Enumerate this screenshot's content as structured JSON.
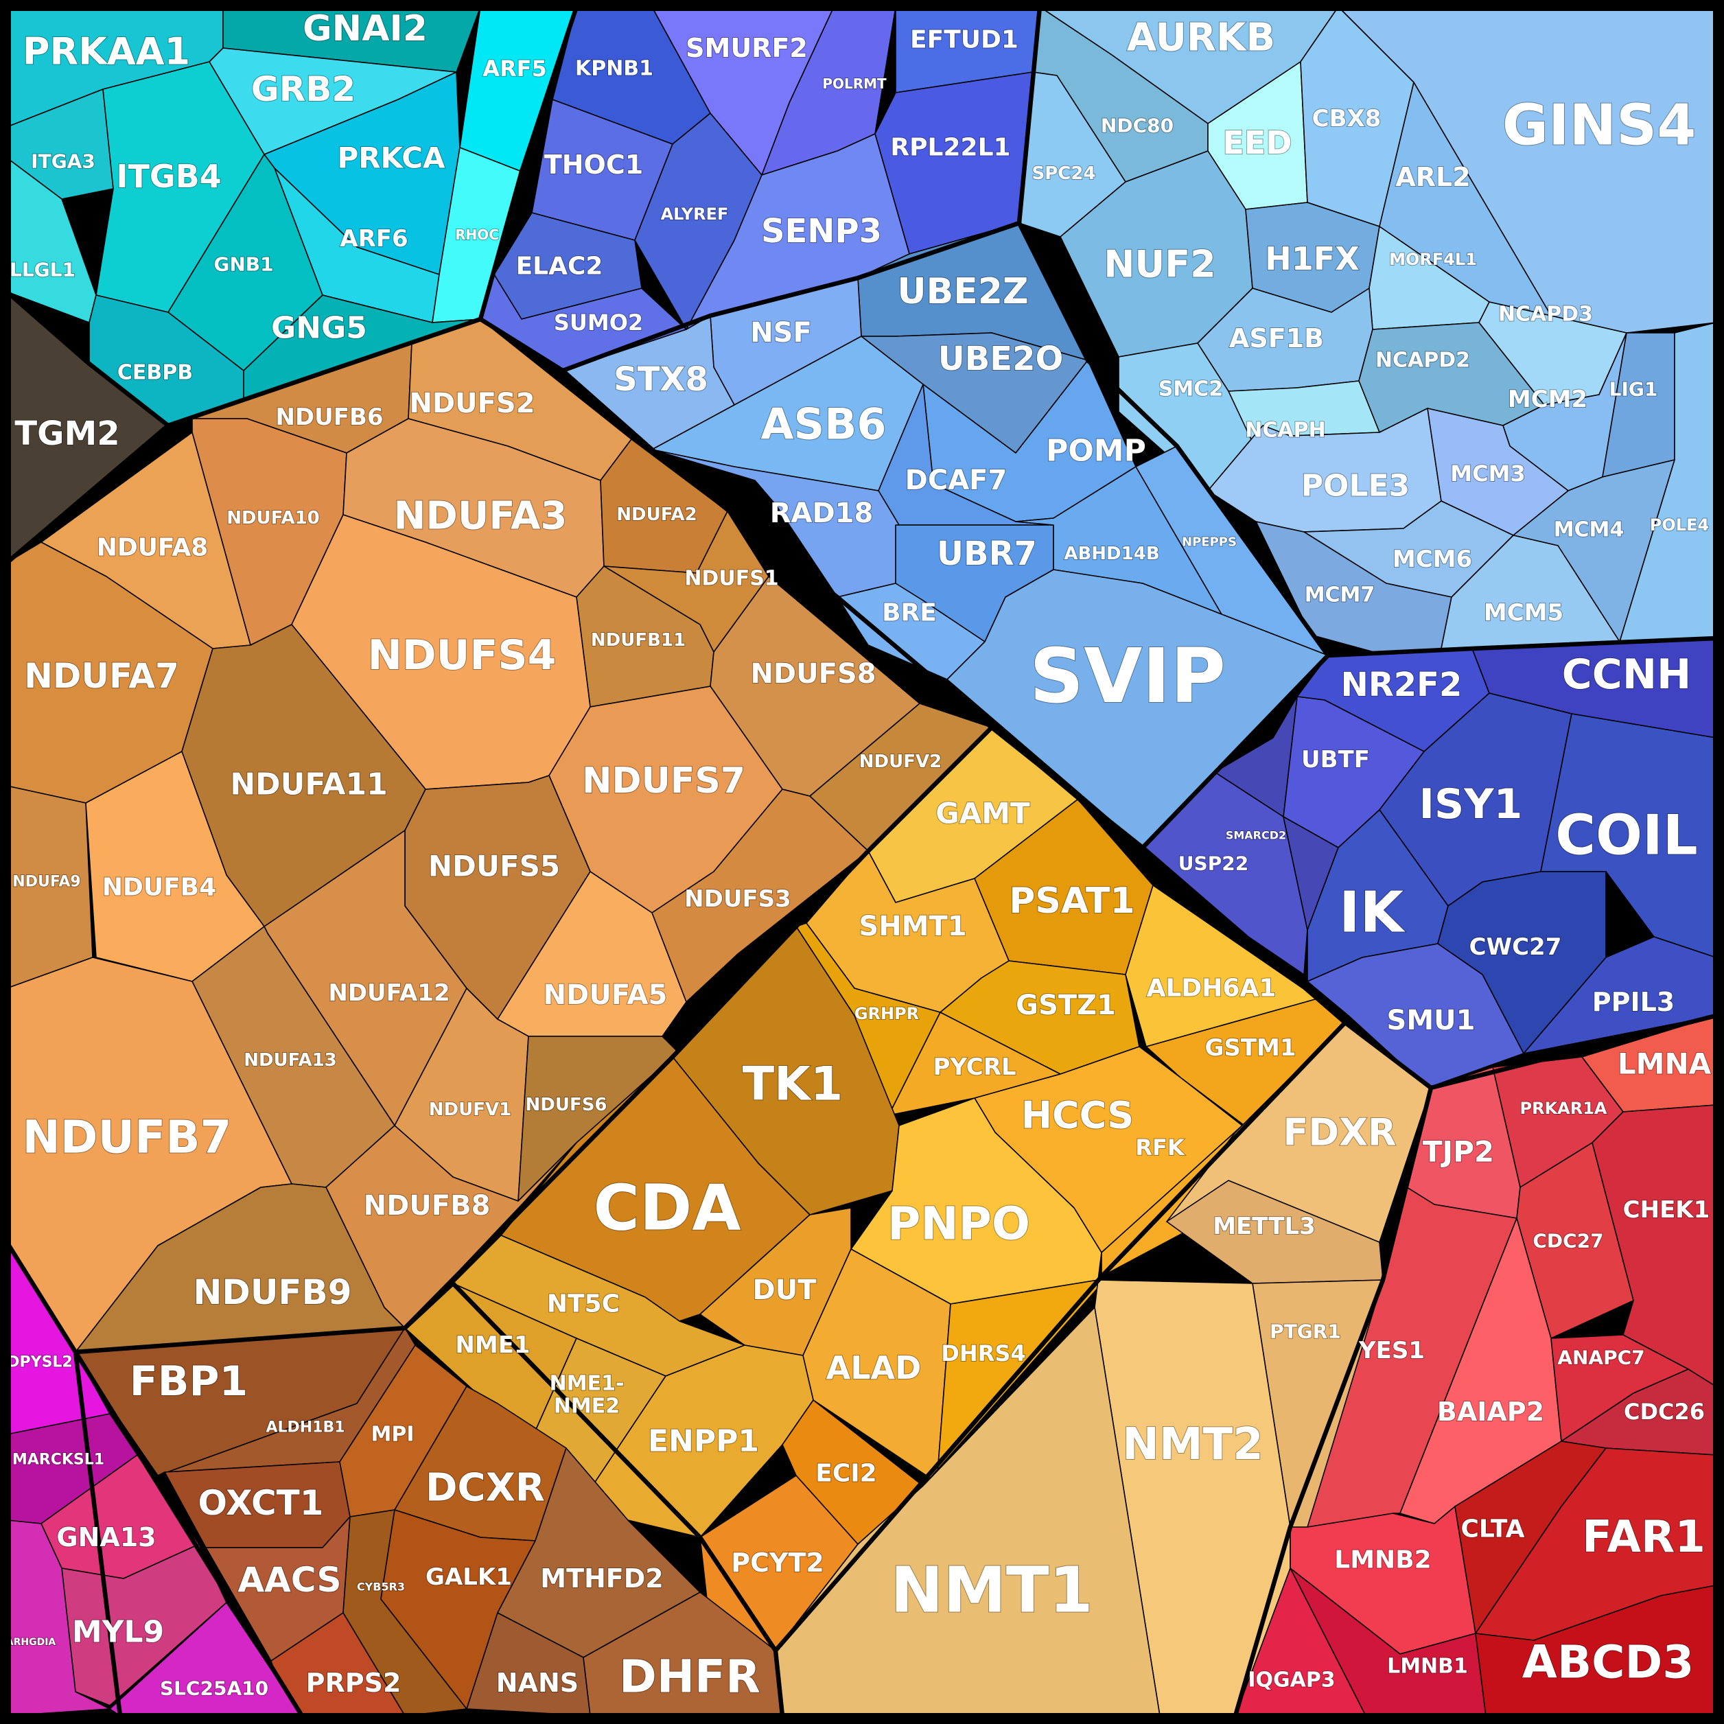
{
  "treemap": {
    "background": "#000000",
    "groups": [
      {
        "id": "cyan",
        "color": "#00c8d8",
        "cells": [
          {
            "label": "PRKAA1",
            "color": "#17c6d2"
          },
          {
            "label": "GNAI2",
            "color": "#05a8a8"
          },
          {
            "label": "ARF5",
            "color": "#00e8f5"
          },
          {
            "label": "GRB2",
            "color": "#3cdbee"
          },
          {
            "label": "ITGA3",
            "color": "#1cc4cf"
          },
          {
            "label": "ITGB4",
            "color": "#0dcfd2"
          },
          {
            "label": "PRKCA",
            "color": "#08c2e4"
          },
          {
            "label": "ARF6",
            "color": "#20d6e8"
          },
          {
            "label": "GNB1",
            "color": "#04bfc2"
          },
          {
            "label": "RHOC",
            "color": "#44fbfc"
          },
          {
            "label": "LLGL1",
            "color": "#36dbdf"
          },
          {
            "label": "GNG5",
            "color": "#04b1b4"
          },
          {
            "label": "CEBPB",
            "color": "#0cb5c1"
          }
        ]
      },
      {
        "id": "dark",
        "color": "#4b4034",
        "cells": [
          {
            "label": "TGM2",
            "color": "#4b4034"
          }
        ]
      },
      {
        "id": "indigo",
        "color": "#5060e8",
        "cells": [
          {
            "label": "KPNB1",
            "color": "#3a5ad6"
          },
          {
            "label": "SMURF2",
            "color": "#7a78fa"
          },
          {
            "label": "POLRMT",
            "color": "#6669ee"
          },
          {
            "label": "EFTUD1",
            "color": "#4b6ee6"
          },
          {
            "label": "THOC1",
            "color": "#5b6ee4"
          },
          {
            "label": "ALYREF",
            "color": "#4a66d8"
          },
          {
            "label": "RPL22L1",
            "color": "#4a5ae2"
          },
          {
            "label": "SENP3",
            "color": "#6f88f2"
          },
          {
            "label": "ELAC2",
            "color": "#4e6bd8"
          },
          {
            "label": "SUMO2",
            "color": "#6071e8"
          }
        ]
      },
      {
        "id": "lightblue",
        "color": "#90c8f0",
        "cells": [
          {
            "label": "AURKB",
            "color": "#8ac6ee"
          },
          {
            "label": "GINS4",
            "color": "#92c4f3"
          },
          {
            "label": "NDC80",
            "color": "#7ab9d9"
          },
          {
            "label": "EED",
            "color": "#b6fbfb"
          },
          {
            "label": "CBX8",
            "color": "#8fcaf7"
          },
          {
            "label": "SPC24",
            "color": "#8ccaf4"
          },
          {
            "label": "ARL2",
            "color": "#84bdf0"
          },
          {
            "label": "NUF2",
            "color": "#7bbbe4"
          },
          {
            "label": "H1FX",
            "color": "#73acde"
          },
          {
            "label": "MORF4L1",
            "color": "#9fdaf8"
          },
          {
            "label": "NCAPD3",
            "color": "#a2d8f8"
          },
          {
            "label": "ASF1B",
            "color": "#8ac4ee"
          },
          {
            "label": "SMC2",
            "color": "#8ecff3"
          },
          {
            "label": "NCAPD2",
            "color": "#78b4d8"
          },
          {
            "label": "NCAPH",
            "color": "#a4e6f7"
          },
          {
            "label": "MCM2",
            "color": "#88bdf3"
          },
          {
            "label": "LIG1",
            "color": "#6fa6e0"
          },
          {
            "label": "POLE3",
            "color": "#9fcaf8"
          },
          {
            "label": "MCM3",
            "color": "#97bcf7"
          },
          {
            "label": "MCM4",
            "color": "#7fb3e6"
          },
          {
            "label": "POLE4",
            "color": "#8cc7f4"
          },
          {
            "label": "MCM6",
            "color": "#92c3f0"
          },
          {
            "label": "MCM7",
            "color": "#7ba9e0"
          },
          {
            "label": "MCM5",
            "color": "#96caf3"
          }
        ]
      },
      {
        "id": "blue",
        "color": "#70a8e8",
        "cells": [
          {
            "label": "UBE2Z",
            "color": "#5590cc"
          },
          {
            "label": "NSF",
            "color": "#80aef4"
          },
          {
            "label": "UBE2O",
            "color": "#6497d0"
          },
          {
            "label": "STX8",
            "color": "#8ab8f0"
          },
          {
            "label": "ASB6",
            "color": "#7ab8f4"
          },
          {
            "label": "POMP",
            "color": "#65a6ee"
          },
          {
            "label": "DCAF7",
            "color": "#5f9aea"
          },
          {
            "label": "RAD18",
            "color": "#76a4f0"
          },
          {
            "label": "UBR7",
            "color": "#5a98e8"
          },
          {
            "label": "ABHD14B",
            "color": "#6aaaef"
          },
          {
            "label": "NPEPPS",
            "color": "#72b0f2"
          },
          {
            "label": "BRE",
            "color": "#78b2f2"
          },
          {
            "label": "SVIP",
            "color": "#78b0ec"
          }
        ]
      },
      {
        "id": "royal",
        "color": "#4050c8",
        "cells": [
          {
            "label": "NR2F2",
            "color": "#4350d2"
          },
          {
            "label": "CCNH",
            "color": "#3f43c2"
          },
          {
            "label": "UBTF",
            "color": "#5459dc"
          },
          {
            "label": "ISY1",
            "color": "#3b4fc0"
          },
          {
            "label": "COIL",
            "color": "#3b52c2"
          },
          {
            "label": "USP22",
            "color": "#5055cc"
          },
          {
            "label": "SMARCD2",
            "color": "#4648b6"
          },
          {
            "label": "IK",
            "color": "#3d55c5"
          },
          {
            "label": "CWC27",
            "color": "#2d46b0"
          },
          {
            "label": "SMU1",
            "color": "#5563d6"
          },
          {
            "label": "PPIL3",
            "color": "#3f50c4"
          }
        ]
      },
      {
        "id": "orange",
        "color": "#e0944c",
        "cells": [
          {
            "label": "NDUFB6",
            "color": "#d28b45"
          },
          {
            "label": "NDUFS2",
            "color": "#e39d55"
          },
          {
            "label": "NDUFA10",
            "color": "#dd8c4a"
          },
          {
            "label": "NDUFA3",
            "color": "#e69e5c"
          },
          {
            "label": "NDUFA2",
            "color": "#c98036"
          },
          {
            "label": "NDUFA8",
            "color": "#eca254"
          },
          {
            "label": "NDUFS1",
            "color": "#cf8a3a"
          },
          {
            "label": "NDUFB11",
            "color": "#c98a40"
          },
          {
            "label": "NDUFS4",
            "color": "#f6a55c"
          },
          {
            "label": "NDUFS8",
            "color": "#d4914b"
          },
          {
            "label": "NDUFA7",
            "color": "#d98d3f"
          },
          {
            "label": "NDUFA11",
            "color": "#b67a35"
          },
          {
            "label": "NDUFV2",
            "color": "#c6883a"
          },
          {
            "label": "NDUFS7",
            "color": "#e99a55"
          },
          {
            "label": "NDUFA9",
            "color": "#d08b44"
          },
          {
            "label": "NDUFB4",
            "color": "#faab5c"
          },
          {
            "label": "NDUFS5",
            "color": "#c27f3c"
          },
          {
            "label": "NDUFS3",
            "color": "#d58a42"
          },
          {
            "label": "NDUFA12",
            "color": "#d78f4a"
          },
          {
            "label": "NDUFA5",
            "color": "#f9ae5f"
          },
          {
            "label": "NDUFA13",
            "color": "#c68844"
          },
          {
            "label": "NDUFV1",
            "color": "#e19b52"
          },
          {
            "label": "NDUFS6",
            "color": "#b37d38"
          },
          {
            "label": "NDUFB7",
            "color": "#f1a257"
          },
          {
            "label": "NDUFB8",
            "color": "#d98f49"
          },
          {
            "label": "NDUFB9",
            "color": "#b77e3a"
          }
        ]
      },
      {
        "id": "amber",
        "color": "#f0a828",
        "cells": [
          {
            "label": "GAMT",
            "color": "#f8c444"
          },
          {
            "label": "PSAT1",
            "color": "#e59a0c"
          },
          {
            "label": "SHMT1",
            "color": "#f6b235"
          },
          {
            "label": "GRHPR",
            "color": "#e8a30a"
          },
          {
            "label": "GSTZ1",
            "color": "#e9a70d"
          },
          {
            "label": "ALDH6A1",
            "color": "#fbc438"
          },
          {
            "label": "PYCRL",
            "color": "#f4aa25"
          },
          {
            "label": "GSTM1",
            "color": "#f3a61b"
          },
          {
            "label": "TK1",
            "color": "#c58219"
          },
          {
            "label": "HCCS",
            "color": "#fbb02c"
          },
          {
            "label": "RFK",
            "color": "#f8ac26"
          },
          {
            "label": "PNPO",
            "color": "#fdc33b"
          },
          {
            "label": "CDA",
            "color": "#d1841c"
          },
          {
            "label": "DUT",
            "color": "#ea9f2a"
          },
          {
            "label": "NT5C",
            "color": "#e3a62e"
          },
          {
            "label": "NME1",
            "color": "#dea028"
          },
          {
            "label": "NME1-\nNME2",
            "color": "#e1a934"
          },
          {
            "label": "ALAD",
            "color": "#f4ab32"
          },
          {
            "label": "DHRS4",
            "color": "#f1a90f"
          },
          {
            "label": "ENPP1",
            "color": "#e8ab30"
          },
          {
            "label": "ECI2",
            "color": "#ea8a11"
          },
          {
            "label": "PCYT2",
            "color": "#ef8b23"
          }
        ]
      },
      {
        "id": "tan",
        "color": "#f0c070",
        "cells": [
          {
            "label": "FDXR",
            "color": "#f0c078"
          },
          {
            "label": "METTL3",
            "color": "#e1ad6c"
          },
          {
            "label": "PTGR1",
            "color": "#e8b66e"
          },
          {
            "label": "NMT2",
            "color": "#f6c97a"
          },
          {
            "label": "NMT1",
            "color": "#eabe72"
          }
        ]
      },
      {
        "id": "brown",
        "color": "#a85a28",
        "cells": [
          {
            "label": "FBP1",
            "color": "#9c5426"
          },
          {
            "label": "ALDH1B1",
            "color": "#a3592b"
          },
          {
            "label": "MPI",
            "color": "#c1641f"
          },
          {
            "label": "OXCT1",
            "color": "#a24c26"
          },
          {
            "label": "DCXR",
            "color": "#b4601c"
          },
          {
            "label": "AACS",
            "color": "#b25a36"
          },
          {
            "label": "CYB5R3",
            "color": "#9f5a1c"
          },
          {
            "label": "GALK1",
            "color": "#b35417"
          },
          {
            "label": "MTHFD2",
            "color": "#a86535"
          },
          {
            "label": "PRPS2",
            "color": "#c04a25"
          },
          {
            "label": "NANS",
            "color": "#9e5a31"
          },
          {
            "label": "DHFR",
            "color": "#ae6535"
          }
        ]
      },
      {
        "id": "red",
        "color": "#e03040",
        "cells": [
          {
            "label": "LMNA",
            "color": "#f25c4c"
          },
          {
            "label": "PRKAR1A",
            "color": "#de3a49"
          },
          {
            "label": "TJP2",
            "color": "#ef5562"
          },
          {
            "label": "CHEK1",
            "color": "#d42e3e"
          },
          {
            "label": "CDC27",
            "color": "#e13e45"
          },
          {
            "label": "YES1",
            "color": "#e84752"
          },
          {
            "label": "BAIAP2",
            "color": "#fe6068"
          },
          {
            "label": "ANAPC7",
            "color": "#dc3040"
          },
          {
            "label": "CDC26",
            "color": "#c72c3e"
          },
          {
            "label": "LMNB2",
            "color": "#f23c50"
          },
          {
            "label": "CLTA",
            "color": "#c41c1a"
          },
          {
            "label": "FAR1",
            "color": "#d12127"
          },
          {
            "label": "LMNB1",
            "color": "#d1163c"
          },
          {
            "label": "IQGAP3",
            "color": "#e52449"
          },
          {
            "label": "ABCD3",
            "color": "#c5101a"
          }
        ]
      },
      {
        "id": "magenta",
        "color": "#d020c8",
        "cells": [
          {
            "label": "DPYSL2",
            "color": "#e416e0"
          },
          {
            "label": "MARCKSL1",
            "color": "#b8139f"
          },
          {
            "label": "GNA13",
            "color": "#e3357a"
          },
          {
            "label": "MYL9",
            "color": "#cf3c80"
          },
          {
            "label": "ARHGDIA",
            "color": "#d42eb4"
          },
          {
            "label": "SLC25A10",
            "color": "#d527c6"
          }
        ]
      }
    ]
  }
}
